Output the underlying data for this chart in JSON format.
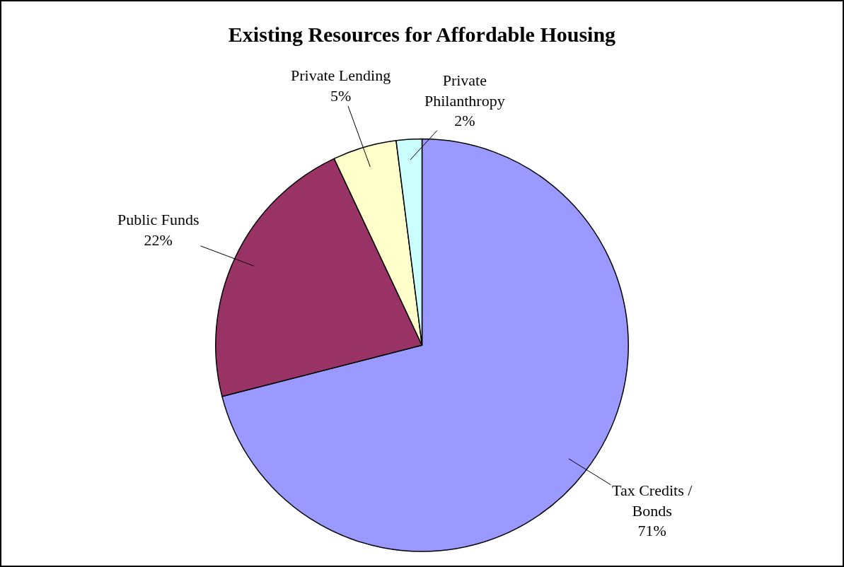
{
  "chart_data": {
    "type": "pie",
    "title": "Existing Resources for Affordable Housing",
    "categories": [
      "Tax Credits / Bonds",
      "Public Funds",
      "Private Lending",
      "Private Philanthropy"
    ],
    "values": [
      71,
      22,
      5,
      2
    ],
    "value_labels": [
      "71%",
      "22%",
      "5%",
      "2%"
    ],
    "colors": [
      "#9999ff",
      "#993366",
      "#ffffcc",
      "#ccffff"
    ],
    "legend": false
  }
}
